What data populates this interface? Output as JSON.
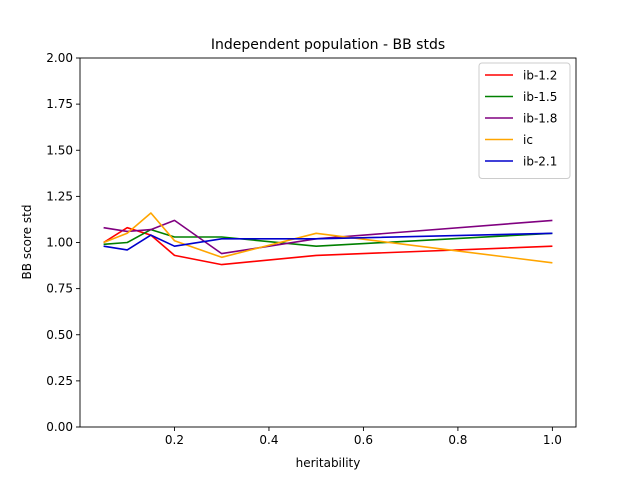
{
  "chart_data": {
    "type": "line",
    "title": "Independent population - BB stds",
    "xlabel": "heritability",
    "ylabel": "BB score std",
    "xlim": [
      0.0,
      1.05
    ],
    "ylim": [
      0.0,
      2.0
    ],
    "xticks": [
      0.2,
      0.4,
      0.6,
      0.8,
      1.0
    ],
    "xtick_labels": [
      "0.2",
      "0.4",
      "0.6",
      "0.8",
      "1.0"
    ],
    "yticks": [
      0.0,
      0.25,
      0.5,
      0.75,
      1.0,
      1.25,
      1.5,
      1.75,
      2.0
    ],
    "ytick_labels": [
      "0.00",
      "0.25",
      "0.50",
      "0.75",
      "1.00",
      "1.25",
      "1.50",
      "1.75",
      "2.00"
    ],
    "grid": false,
    "legend_position": "top-right",
    "x": [
      0.05,
      0.1,
      0.15,
      0.2,
      0.3,
      0.5,
      1.0
    ],
    "series": [
      {
        "name": "ib-1.2",
        "color": "#ff0000",
        "values": [
          1.0,
          1.08,
          1.04,
          0.93,
          0.88,
          0.93,
          0.98
        ]
      },
      {
        "name": "ib-1.5",
        "color": "#008000",
        "values": [
          0.99,
          1.0,
          1.07,
          1.03,
          1.03,
          0.98,
          1.05
        ]
      },
      {
        "name": "ib-1.8",
        "color": "#800080",
        "values": [
          1.08,
          1.06,
          1.07,
          1.12,
          0.94,
          1.02,
          1.12
        ]
      },
      {
        "name": "ic",
        "color": "#ffa500",
        "values": [
          1.0,
          1.05,
          1.16,
          1.01,
          0.92,
          1.05,
          0.89
        ]
      },
      {
        "name": "ib-2.1",
        "color": "#0000cc",
        "values": [
          0.98,
          0.96,
          1.04,
          0.98,
          1.02,
          1.02,
          1.05
        ]
      }
    ]
  }
}
